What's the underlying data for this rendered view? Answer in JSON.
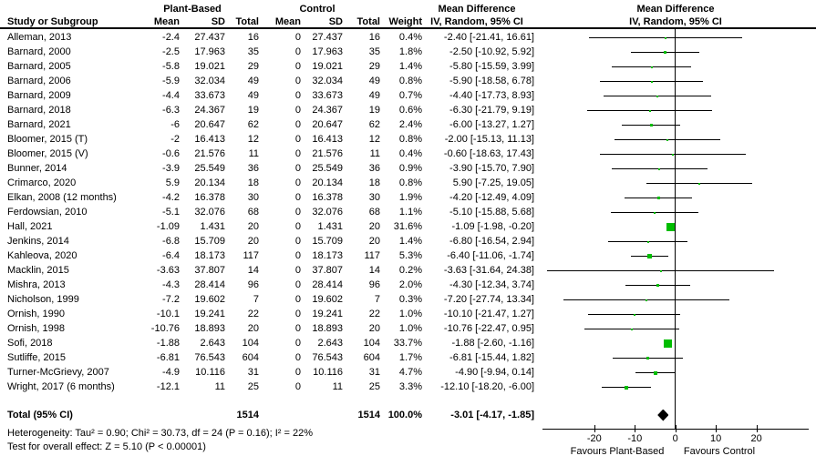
{
  "header": {
    "study_col": "Study or Subgroup",
    "group1": "Plant-Based",
    "group2": "Control",
    "mean": "Mean",
    "sd": "SD",
    "total": "Total",
    "weight": "Weight",
    "md_title": "Mean Difference",
    "md_subtitle": "IV, Random, 95% CI"
  },
  "chart_data": {
    "type": "scatter",
    "subtype": "forest-plot",
    "effect_measure": "Mean Difference IV, Random, 95% CI",
    "x_axis": {
      "ticks": [
        -20,
        -10,
        0,
        10,
        20
      ],
      "range": [
        -33,
        33
      ],
      "favours_left": "Favours Plant-Based",
      "favours_right": "Favours Control"
    },
    "studies": [
      {
        "name": "Alleman, 2013",
        "pb_mean": "-2.4",
        "pb_sd": "27.437",
        "pb_total": "16",
        "c_mean": "0",
        "c_sd": "27.437",
        "c_total": "16",
        "weight": "0.4%",
        "md_ci": "-2.40 [-21.41, 16.61]",
        "est": -2.4,
        "lo": -21.41,
        "hi": 16.61,
        "w": 0.4
      },
      {
        "name": "Barnard, 2000",
        "pb_mean": "-2.5",
        "pb_sd": "17.963",
        "pb_total": "35",
        "c_mean": "0",
        "c_sd": "17.963",
        "c_total": "35",
        "weight": "1.8%",
        "md_ci": "-2.50 [-10.92, 5.92]",
        "est": -2.5,
        "lo": -10.92,
        "hi": 5.92,
        "w": 1.8
      },
      {
        "name": "Barnard, 2005",
        "pb_mean": "-5.8",
        "pb_sd": "19.021",
        "pb_total": "29",
        "c_mean": "0",
        "c_sd": "19.021",
        "c_total": "29",
        "weight": "1.4%",
        "md_ci": "-5.80 [-15.59, 3.99]",
        "est": -5.8,
        "lo": -15.59,
        "hi": 3.99,
        "w": 1.4
      },
      {
        "name": "Barnard, 2006",
        "pb_mean": "-5.9",
        "pb_sd": "32.034",
        "pb_total": "49",
        "c_mean": "0",
        "c_sd": "32.034",
        "c_total": "49",
        "weight": "0.8%",
        "md_ci": "-5.90 [-18.58, 6.78]",
        "est": -5.9,
        "lo": -18.58,
        "hi": 6.78,
        "w": 0.8
      },
      {
        "name": "Barnard, 2009",
        "pb_mean": "-4.4",
        "pb_sd": "33.673",
        "pb_total": "49",
        "c_mean": "0",
        "c_sd": "33.673",
        "c_total": "49",
        "weight": "0.7%",
        "md_ci": "-4.40 [-17.73, 8.93]",
        "est": -4.4,
        "lo": -17.73,
        "hi": 8.93,
        "w": 0.7
      },
      {
        "name": "Barnard, 2018",
        "pb_mean": "-6.3",
        "pb_sd": "24.367",
        "pb_total": "19",
        "c_mean": "0",
        "c_sd": "24.367",
        "c_total": "19",
        "weight": "0.6%",
        "md_ci": "-6.30 [-21.79, 9.19]",
        "est": -6.3,
        "lo": -21.79,
        "hi": 9.19,
        "w": 0.6
      },
      {
        "name": "Barnard, 2021",
        "pb_mean": "-6",
        "pb_sd": "20.647",
        "pb_total": "62",
        "c_mean": "0",
        "c_sd": "20.647",
        "c_total": "62",
        "weight": "2.4%",
        "md_ci": "-6.00 [-13.27, 1.27]",
        "est": -6,
        "lo": -13.27,
        "hi": 1.27,
        "w": 2.4
      },
      {
        "name": "Bloomer, 2015 (T)",
        "pb_mean": "-2",
        "pb_sd": "16.413",
        "pb_total": "12",
        "c_mean": "0",
        "c_sd": "16.413",
        "c_total": "12",
        "weight": "0.8%",
        "md_ci": "-2.00 [-15.13, 11.13]",
        "est": -2,
        "lo": -15.13,
        "hi": 11.13,
        "w": 0.8
      },
      {
        "name": "Bloomer, 2015 (V)",
        "pb_mean": "-0.6",
        "pb_sd": "21.576",
        "pb_total": "11",
        "c_mean": "0",
        "c_sd": "21.576",
        "c_total": "11",
        "weight": "0.4%",
        "md_ci": "-0.60 [-18.63, 17.43]",
        "est": -0.6,
        "lo": -18.63,
        "hi": 17.43,
        "w": 0.4
      },
      {
        "name": "Bunner, 2014",
        "pb_mean": "-3.9",
        "pb_sd": "25.549",
        "pb_total": "36",
        "c_mean": "0",
        "c_sd": "25.549",
        "c_total": "36",
        "weight": "0.9%",
        "md_ci": "-3.90 [-15.70, 7.90]",
        "est": -3.9,
        "lo": -15.7,
        "hi": 7.9,
        "w": 0.9
      },
      {
        "name": "Crimarco, 2020",
        "pb_mean": "5.9",
        "pb_sd": "20.134",
        "pb_total": "18",
        "c_mean": "0",
        "c_sd": "20.134",
        "c_total": "18",
        "weight": "0.8%",
        "md_ci": "5.90 [-7.25, 19.05]",
        "est": 5.9,
        "lo": -7.25,
        "hi": 19.05,
        "w": 0.8
      },
      {
        "name": "Elkan, 2008 (12 months)",
        "pb_mean": "-4.2",
        "pb_sd": "16.378",
        "pb_total": "30",
        "c_mean": "0",
        "c_sd": "16.378",
        "c_total": "30",
        "weight": "1.9%",
        "md_ci": "-4.20 [-12.49, 4.09]",
        "est": -4.2,
        "lo": -12.49,
        "hi": 4.09,
        "w": 1.9
      },
      {
        "name": "Ferdowsian, 2010",
        "pb_mean": "-5.1",
        "pb_sd": "32.076",
        "pb_total": "68",
        "c_mean": "0",
        "c_sd": "32.076",
        "c_total": "68",
        "weight": "1.1%",
        "md_ci": "-5.10 [-15.88, 5.68]",
        "est": -5.1,
        "lo": -15.88,
        "hi": 5.68,
        "w": 1.1
      },
      {
        "name": "Hall, 2021",
        "pb_mean": "-1.09",
        "pb_sd": "1.431",
        "pb_total": "20",
        "c_mean": "0",
        "c_sd": "1.431",
        "c_total": "20",
        "weight": "31.6%",
        "md_ci": "-1.09 [-1.98, -0.20]",
        "est": -1.09,
        "lo": -1.98,
        "hi": -0.2,
        "w": 31.6
      },
      {
        "name": "Jenkins, 2014",
        "pb_mean": "-6.8",
        "pb_sd": "15.709",
        "pb_total": "20",
        "c_mean": "0",
        "c_sd": "15.709",
        "c_total": "20",
        "weight": "1.4%",
        "md_ci": "-6.80 [-16.54, 2.94]",
        "est": -6.8,
        "lo": -16.54,
        "hi": 2.94,
        "w": 1.4
      },
      {
        "name": "Kahleova, 2020",
        "pb_mean": "-6.4",
        "pb_sd": "18.173",
        "pb_total": "117",
        "c_mean": "0",
        "c_sd": "18.173",
        "c_total": "117",
        "weight": "5.3%",
        "md_ci": "-6.40 [-11.06, -1.74]",
        "est": -6.4,
        "lo": -11.06,
        "hi": -1.74,
        "w": 5.3
      },
      {
        "name": "Macklin, 2015",
        "pb_mean": "-3.63",
        "pb_sd": "37.807",
        "pb_total": "14",
        "c_mean": "0",
        "c_sd": "37.807",
        "c_total": "14",
        "weight": "0.2%",
        "md_ci": "-3.63 [-31.64, 24.38]",
        "est": -3.63,
        "lo": -31.64,
        "hi": 24.38,
        "w": 0.2
      },
      {
        "name": "Mishra, 2013",
        "pb_mean": "-4.3",
        "pb_sd": "28.414",
        "pb_total": "96",
        "c_mean": "0",
        "c_sd": "28.414",
        "c_total": "96",
        "weight": "2.0%",
        "md_ci": "-4.30 [-12.34, 3.74]",
        "est": -4.3,
        "lo": -12.34,
        "hi": 3.74,
        "w": 2.0
      },
      {
        "name": "Nicholson, 1999",
        "pb_mean": "-7.2",
        "pb_sd": "19.602",
        "pb_total": "7",
        "c_mean": "0",
        "c_sd": "19.602",
        "c_total": "7",
        "weight": "0.3%",
        "md_ci": "-7.20 [-27.74, 13.34]",
        "est": -7.2,
        "lo": -27.74,
        "hi": 13.34,
        "w": 0.3
      },
      {
        "name": "Ornish, 1990",
        "pb_mean": "-10.1",
        "pb_sd": "19.241",
        "pb_total": "22",
        "c_mean": "0",
        "c_sd": "19.241",
        "c_total": "22",
        "weight": "1.0%",
        "md_ci": "-10.10 [-21.47, 1.27]",
        "est": -10.1,
        "lo": -21.47,
        "hi": 1.27,
        "w": 1.0
      },
      {
        "name": "Ornish, 1998",
        "pb_mean": "-10.76",
        "pb_sd": "18.893",
        "pb_total": "20",
        "c_mean": "0",
        "c_sd": "18.893",
        "c_total": "20",
        "weight": "1.0%",
        "md_ci": "-10.76 [-22.47, 0.95]",
        "est": -10.76,
        "lo": -22.47,
        "hi": 0.95,
        "w": 1.0
      },
      {
        "name": "Sofi, 2018",
        "pb_mean": "-1.88",
        "pb_sd": "2.643",
        "pb_total": "104",
        "c_mean": "0",
        "c_sd": "2.643",
        "c_total": "104",
        "weight": "33.7%",
        "md_ci": "-1.88 [-2.60, -1.16]",
        "est": -1.88,
        "lo": -2.6,
        "hi": -1.16,
        "w": 33.7
      },
      {
        "name": "Sutliffe, 2015",
        "pb_mean": "-6.81",
        "pb_sd": "76.543",
        "pb_total": "604",
        "c_mean": "0",
        "c_sd": "76.543",
        "c_total": "604",
        "weight": "1.7%",
        "md_ci": "-6.81 [-15.44, 1.82]",
        "est": -6.81,
        "lo": -15.44,
        "hi": 1.82,
        "w": 1.7
      },
      {
        "name": "Turner-McGrievy, 2007",
        "pb_mean": "-4.9",
        "pb_sd": "10.116",
        "pb_total": "31",
        "c_mean": "0",
        "c_sd": "10.116",
        "c_total": "31",
        "weight": "4.7%",
        "md_ci": "-4.90 [-9.94, 0.14]",
        "est": -4.9,
        "lo": -9.94,
        "hi": 0.14,
        "w": 4.7
      },
      {
        "name": "Wright, 2017 (6 months)",
        "pb_mean": "-12.1",
        "pb_sd": "11",
        "pb_total": "25",
        "c_mean": "0",
        "c_sd": "11",
        "c_total": "25",
        "weight": "3.3%",
        "md_ci": "-12.10 [-18.20, -6.00]",
        "est": -12.1,
        "lo": -18.2,
        "hi": -6.0,
        "w": 3.3
      }
    ],
    "total": {
      "label": "Total (95% CI)",
      "pb_total": "1514",
      "c_total": "1514",
      "weight": "100.0%",
      "md_ci": "-3.01 [-4.17, -1.85]",
      "est": -3.01,
      "lo": -4.17,
      "hi": -1.85
    }
  },
  "footnotes": {
    "heterogeneity": "Heterogeneity: Tau² = 0.90; Chi² = 30.73, df = 24 (P = 0.16); I² = 22%",
    "overall_effect": "Test for overall effect: Z = 5.10 (P < 0.00001)"
  },
  "colors": {
    "marker_green": "#00bd00",
    "diamond_black": "#000000",
    "line_black": "#000000"
  }
}
